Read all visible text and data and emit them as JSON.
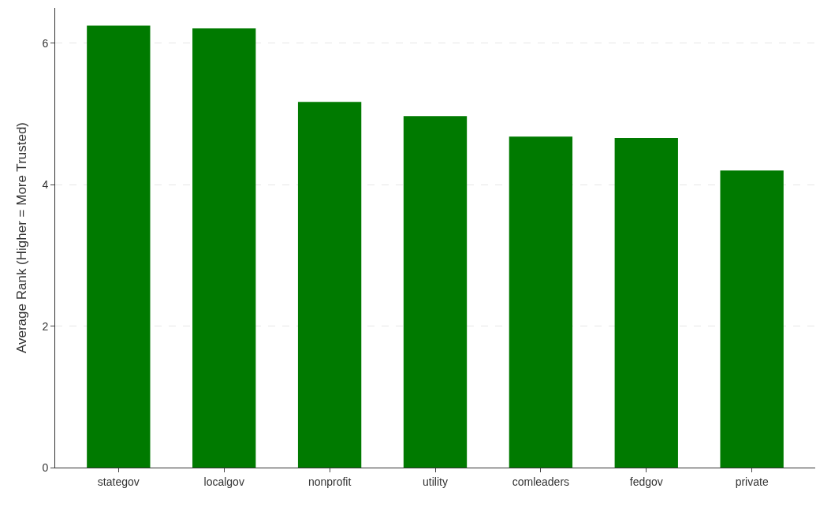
{
  "chart_data": {
    "type": "bar",
    "ylabel": "Average Rank (Higher = More Trusted)",
    "categories": [
      "stategov",
      "localgov",
      "nonprofit",
      "utility",
      "comleaders",
      "fedgov",
      "private"
    ],
    "values": [
      6.25,
      6.21,
      5.17,
      4.97,
      4.68,
      4.66,
      4.2
    ],
    "color": "#007a00",
    "ylim": [
      0,
      6.5
    ],
    "yticks": [
      0,
      2,
      4,
      6
    ],
    "grid": "y",
    "legend": false
  }
}
